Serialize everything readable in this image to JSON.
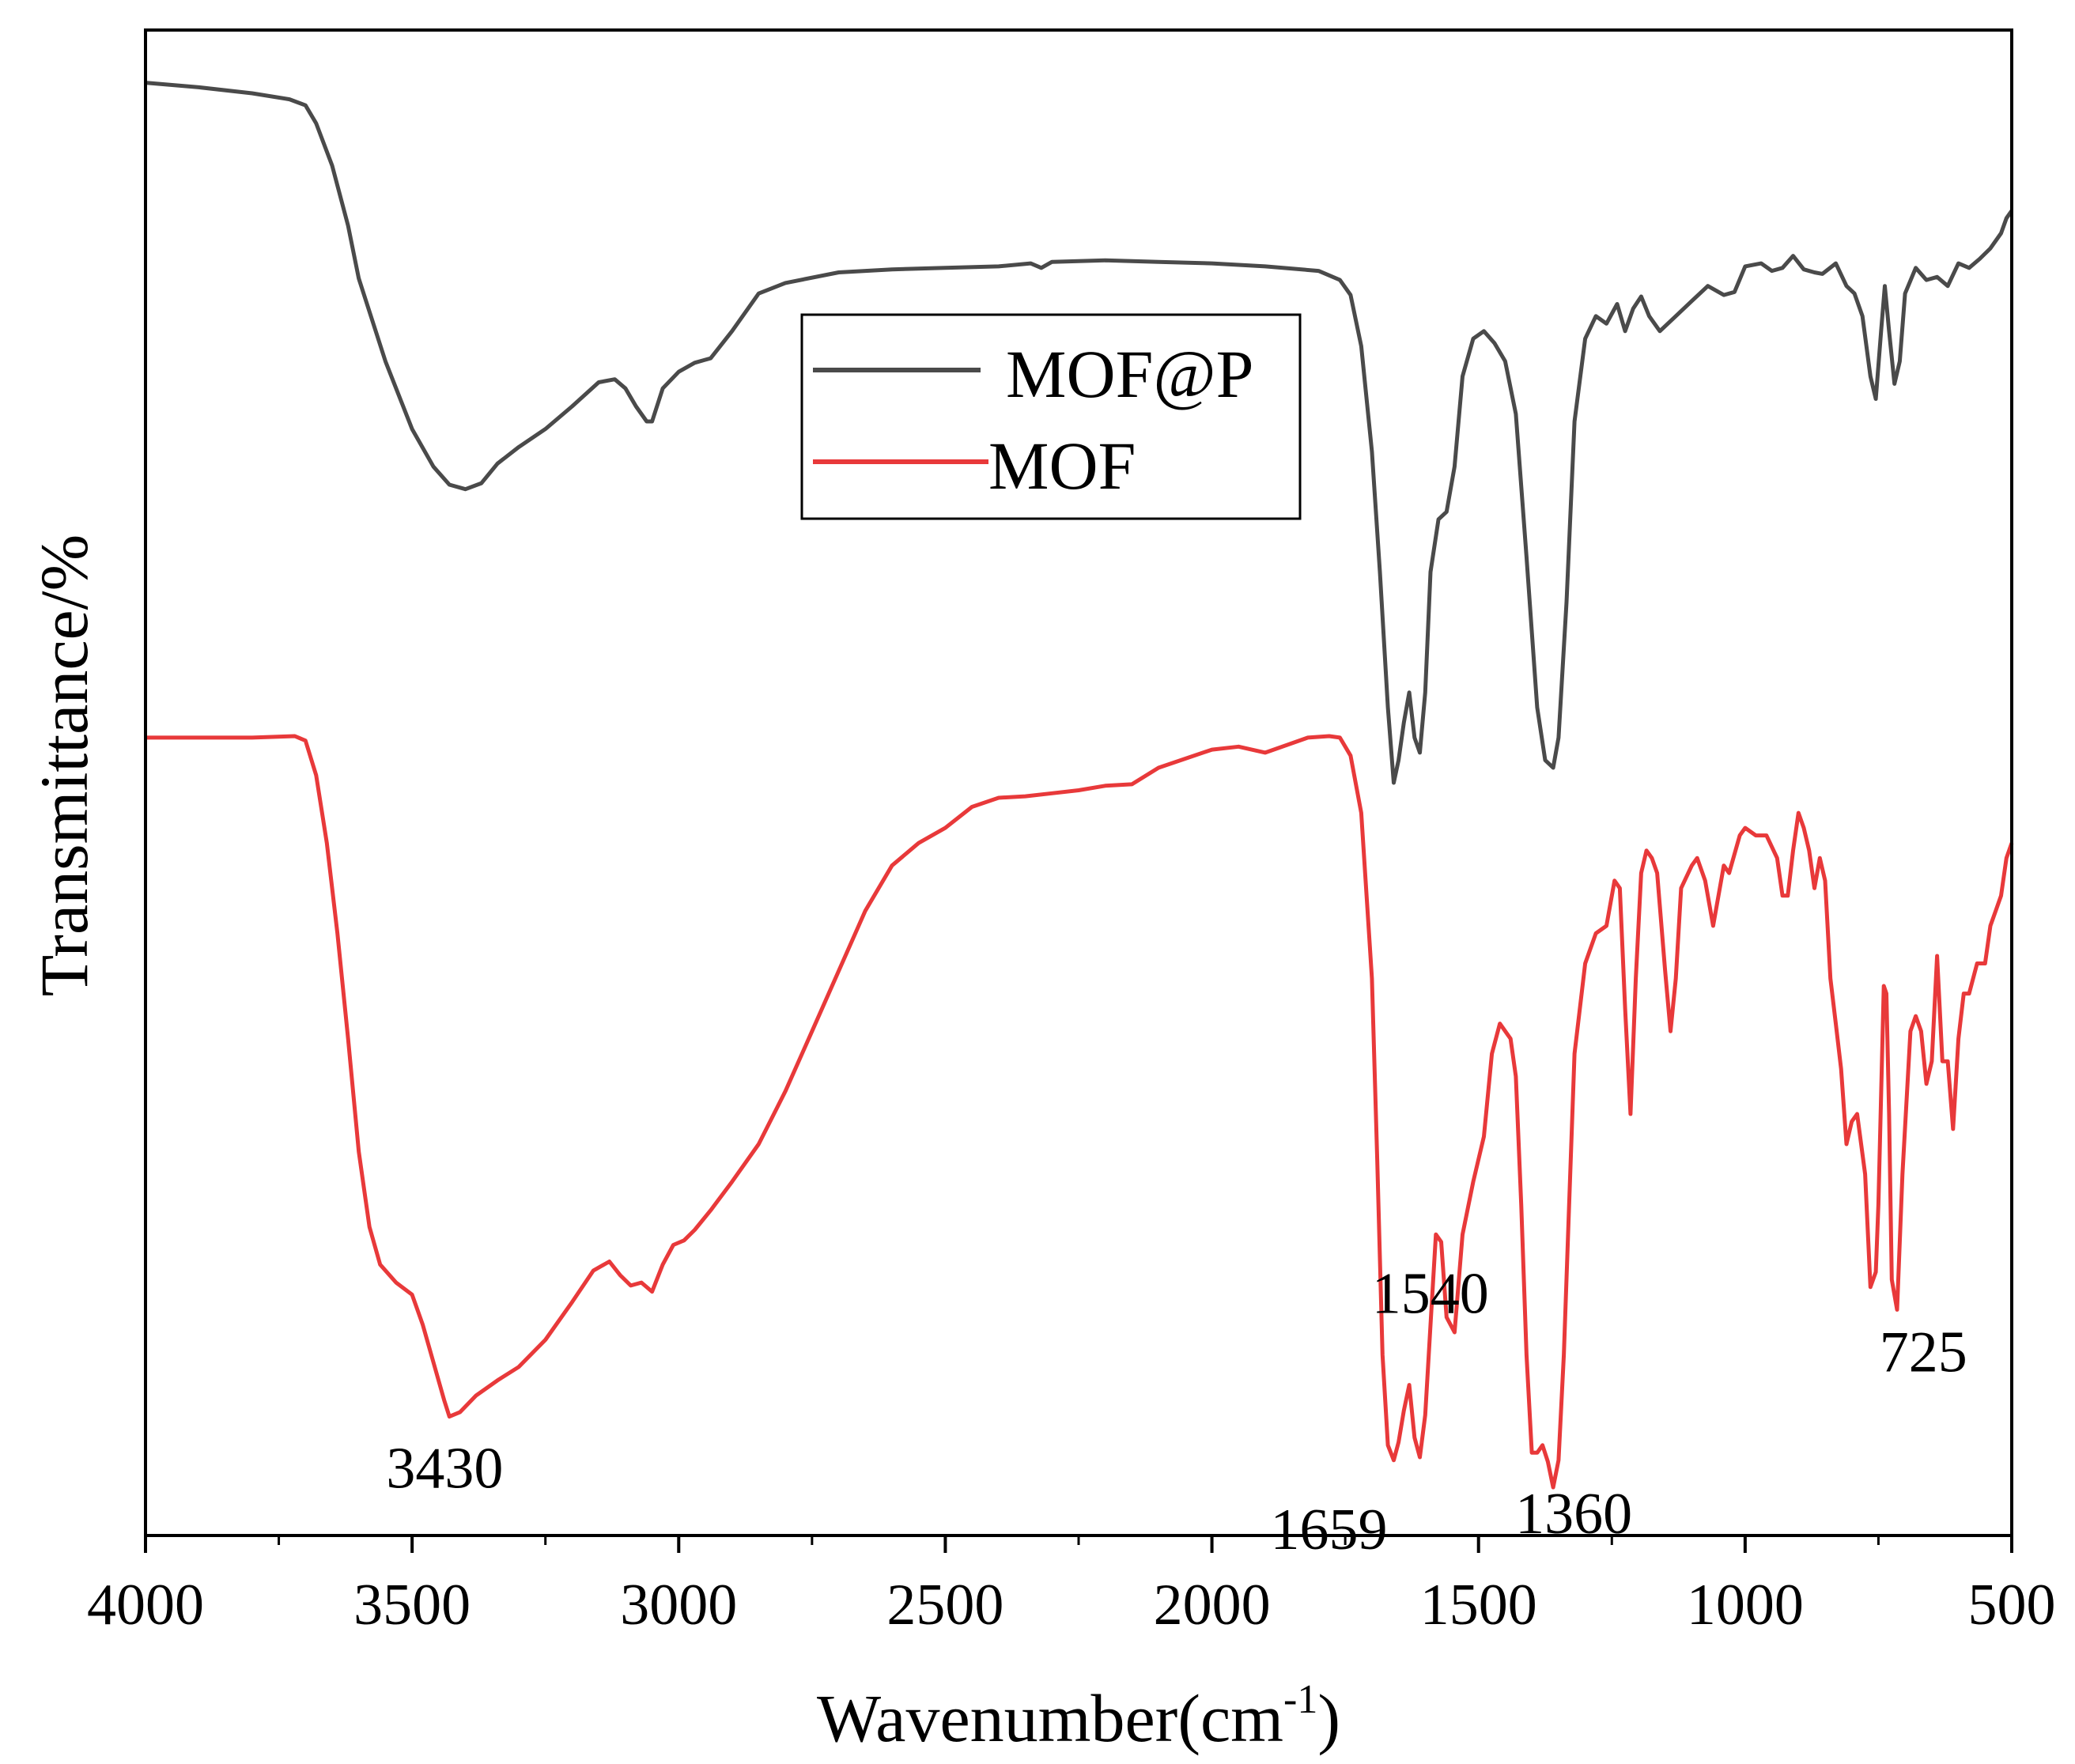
{
  "chart_data": {
    "type": "line",
    "title": "",
    "xlabel": "Wavenumber(cm",
    "xlabel_sup": "-1",
    "xlabel_close": ")",
    "ylabel": "Transmittance/%",
    "xlim": [
      4000,
      500
    ],
    "ylim": [
      0,
      100
    ],
    "x_ticks": [
      4000,
      3500,
      3000,
      2500,
      2000,
      1500,
      1000,
      500
    ],
    "y_ticks_shown": false,
    "grid": false,
    "legend_position": "top-center",
    "series": [
      {
        "name": "MOF@P",
        "color": "#4a4a4a",
        "points": [
          [
            4000,
            96.5
          ],
          [
            3900,
            96.2
          ],
          [
            3800,
            95.8
          ],
          [
            3730,
            95.4
          ],
          [
            3700,
            95.0
          ],
          [
            3680,
            93.8
          ],
          [
            3650,
            91.0
          ],
          [
            3620,
            87.0
          ],
          [
            3600,
            83.5
          ],
          [
            3550,
            78.0
          ],
          [
            3500,
            73.5
          ],
          [
            3460,
            71.0
          ],
          [
            3430,
            69.8
          ],
          [
            3400,
            69.5
          ],
          [
            3370,
            69.9
          ],
          [
            3340,
            71.2
          ],
          [
            3300,
            72.3
          ],
          [
            3250,
            73.5
          ],
          [
            3200,
            75.0
          ],
          [
            3150,
            76.6
          ],
          [
            3120,
            76.8
          ],
          [
            3100,
            76.2
          ],
          [
            3080,
            75.0
          ],
          [
            3060,
            74.0
          ],
          [
            3050,
            74.0
          ],
          [
            3030,
            76.2
          ],
          [
            3000,
            77.3
          ],
          [
            2970,
            77.9
          ],
          [
            2940,
            78.2
          ],
          [
            2900,
            80.0
          ],
          [
            2850,
            82.5
          ],
          [
            2800,
            83.2
          ],
          [
            2700,
            83.9
          ],
          [
            2600,
            84.1
          ],
          [
            2500,
            84.2
          ],
          [
            2400,
            84.3
          ],
          [
            2340,
            84.5
          ],
          [
            2320,
            84.2
          ],
          [
            2300,
            84.6
          ],
          [
            2200,
            84.7
          ],
          [
            2100,
            84.6
          ],
          [
            2000,
            84.5
          ],
          [
            1900,
            84.3
          ],
          [
            1800,
            84.0
          ],
          [
            1760,
            83.4
          ],
          [
            1740,
            82.4
          ],
          [
            1720,
            79.0
          ],
          [
            1700,
            72.0
          ],
          [
            1685,
            64.0
          ],
          [
            1670,
            55.0
          ],
          [
            1659,
            50.0
          ],
          [
            1650,
            51.5
          ],
          [
            1640,
            54.0
          ],
          [
            1630,
            56.0
          ],
          [
            1620,
            53.0
          ],
          [
            1610,
            52.0
          ],
          [
            1600,
            56.0
          ],
          [
            1590,
            64.0
          ],
          [
            1575,
            67.5
          ],
          [
            1560,
            68.0
          ],
          [
            1545,
            71.0
          ],
          [
            1530,
            77.0
          ],
          [
            1510,
            79.5
          ],
          [
            1490,
            80.0
          ],
          [
            1470,
            79.2
          ],
          [
            1450,
            78.0
          ],
          [
            1430,
            74.5
          ],
          [
            1410,
            65.0
          ],
          [
            1390,
            55.0
          ],
          [
            1375,
            51.5
          ],
          [
            1360,
            51.0
          ],
          [
            1350,
            53.0
          ],
          [
            1335,
            62.0
          ],
          [
            1320,
            74.0
          ],
          [
            1300,
            79.5
          ],
          [
            1280,
            81.0
          ],
          [
            1260,
            80.5
          ],
          [
            1240,
            81.8
          ],
          [
            1225,
            80.0
          ],
          [
            1210,
            81.5
          ],
          [
            1195,
            82.3
          ],
          [
            1180,
            81.0
          ],
          [
            1160,
            80.0
          ],
          [
            1130,
            81.0
          ],
          [
            1100,
            82.0
          ],
          [
            1070,
            83.0
          ],
          [
            1040,
            82.4
          ],
          [
            1020,
            82.6
          ],
          [
            1000,
            84.3
          ],
          [
            970,
            84.5
          ],
          [
            950,
            84.0
          ],
          [
            930,
            84.2
          ],
          [
            910,
            85.0
          ],
          [
            890,
            84.1
          ],
          [
            870,
            83.9
          ],
          [
            855,
            83.8
          ],
          [
            830,
            84.5
          ],
          [
            810,
            83.0
          ],
          [
            795,
            82.5
          ],
          [
            780,
            81.0
          ],
          [
            765,
            77.0
          ],
          [
            755,
            75.5
          ],
          [
            745,
            80.0
          ],
          [
            738,
            83.0
          ],
          [
            730,
            80.0
          ],
          [
            720,
            76.5
          ],
          [
            710,
            78.0
          ],
          [
            700,
            82.5
          ],
          [
            680,
            84.2
          ],
          [
            660,
            83.4
          ],
          [
            640,
            83.6
          ],
          [
            620,
            83.0
          ],
          [
            600,
            84.5
          ],
          [
            580,
            84.2
          ],
          [
            560,
            84.8
          ],
          [
            540,
            85.5
          ],
          [
            520,
            86.5
          ],
          [
            510,
            87.5
          ],
          [
            500,
            88.0
          ]
        ]
      },
      {
        "name": "MOF",
        "color": "#e8393a",
        "points": [
          [
            4000,
            53.0
          ],
          [
            3900,
            53.0
          ],
          [
            3800,
            53.0
          ],
          [
            3720,
            53.1
          ],
          [
            3700,
            52.8
          ],
          [
            3680,
            50.5
          ],
          [
            3660,
            46.0
          ],
          [
            3640,
            40.0
          ],
          [
            3620,
            33.0
          ],
          [
            3600,
            25.5
          ],
          [
            3580,
            20.5
          ],
          [
            3560,
            18.0
          ],
          [
            3530,
            16.8
          ],
          [
            3500,
            16.0
          ],
          [
            3480,
            14.0
          ],
          [
            3460,
            11.5
          ],
          [
            3440,
            9.0
          ],
          [
            3430,
            7.9
          ],
          [
            3410,
            8.2
          ],
          [
            3380,
            9.3
          ],
          [
            3340,
            10.3
          ],
          [
            3300,
            11.2
          ],
          [
            3250,
            13.0
          ],
          [
            3200,
            15.5
          ],
          [
            3160,
            17.6
          ],
          [
            3130,
            18.2
          ],
          [
            3110,
            17.3
          ],
          [
            3090,
            16.6
          ],
          [
            3070,
            16.8
          ],
          [
            3050,
            16.2
          ],
          [
            3030,
            18.0
          ],
          [
            3010,
            19.3
          ],
          [
            2990,
            19.6
          ],
          [
            2970,
            20.3
          ],
          [
            2940,
            21.6
          ],
          [
            2900,
            23.5
          ],
          [
            2850,
            26.0
          ],
          [
            2800,
            29.5
          ],
          [
            2750,
            33.5
          ],
          [
            2700,
            37.5
          ],
          [
            2650,
            41.5
          ],
          [
            2600,
            44.5
          ],
          [
            2550,
            46.0
          ],
          [
            2500,
            47.0
          ],
          [
            2450,
            48.4
          ],
          [
            2400,
            49.0
          ],
          [
            2350,
            49.1
          ],
          [
            2300,
            49.3
          ],
          [
            2250,
            49.5
          ],
          [
            2200,
            49.8
          ],
          [
            2150,
            49.9
          ],
          [
            2100,
            51.0
          ],
          [
            2050,
            51.6
          ],
          [
            2000,
            52.2
          ],
          [
            1950,
            52.4
          ],
          [
            1900,
            52.0
          ],
          [
            1860,
            52.5
          ],
          [
            1820,
            53.0
          ],
          [
            1780,
            53.1
          ],
          [
            1760,
            53.0
          ],
          [
            1740,
            51.8
          ],
          [
            1720,
            48.0
          ],
          [
            1700,
            37.0
          ],
          [
            1690,
            25.0
          ],
          [
            1680,
            12.0
          ],
          [
            1670,
            6.0
          ],
          [
            1659,
            5.0
          ],
          [
            1650,
            6.2
          ],
          [
            1640,
            8.3
          ],
          [
            1630,
            10.0
          ],
          [
            1620,
            6.5
          ],
          [
            1610,
            5.2
          ],
          [
            1600,
            8.0
          ],
          [
            1590,
            14.0
          ],
          [
            1580,
            20.0
          ],
          [
            1570,
            19.5
          ],
          [
            1560,
            14.5
          ],
          [
            1545,
            13.5
          ],
          [
            1530,
            20.0
          ],
          [
            1510,
            23.5
          ],
          [
            1490,
            26.5
          ],
          [
            1475,
            32.0
          ],
          [
            1460,
            34.0
          ],
          [
            1440,
            33.0
          ],
          [
            1430,
            30.5
          ],
          [
            1420,
            22.0
          ],
          [
            1410,
            12.0
          ],
          [
            1400,
            5.5
          ],
          [
            1390,
            5.5
          ],
          [
            1380,
            6.0
          ],
          [
            1370,
            4.9
          ],
          [
            1360,
            3.2
          ],
          [
            1350,
            5.0
          ],
          [
            1340,
            12.0
          ],
          [
            1330,
            22.0
          ],
          [
            1320,
            32.0
          ],
          [
            1300,
            38.0
          ],
          [
            1280,
            40.0
          ],
          [
            1260,
            40.5
          ],
          [
            1245,
            43.5
          ],
          [
            1235,
            43.0
          ],
          [
            1225,
            35.0
          ],
          [
            1215,
            28.0
          ],
          [
            1205,
            37.0
          ],
          [
            1195,
            44.0
          ],
          [
            1185,
            45.5
          ],
          [
            1175,
            45.0
          ],
          [
            1165,
            44.0
          ],
          [
            1150,
            37.5
          ],
          [
            1140,
            33.5
          ],
          [
            1130,
            37.0
          ],
          [
            1120,
            43.0
          ],
          [
            1100,
            44.5
          ],
          [
            1090,
            45.0
          ],
          [
            1075,
            43.5
          ],
          [
            1060,
            40.5
          ],
          [
            1040,
            44.5
          ],
          [
            1030,
            44.0
          ],
          [
            1010,
            46.5
          ],
          [
            1000,
            47.0
          ],
          [
            980,
            46.5
          ],
          [
            960,
            46.5
          ],
          [
            940,
            45.0
          ],
          [
            930,
            42.5
          ],
          [
            920,
            42.5
          ],
          [
            910,
            45.5
          ],
          [
            900,
            48.0
          ],
          [
            890,
            47.0
          ],
          [
            880,
            45.5
          ],
          [
            870,
            43.0
          ],
          [
            860,
            45.0
          ],
          [
            850,
            43.5
          ],
          [
            840,
            37.0
          ],
          [
            830,
            34.0
          ],
          [
            820,
            31.0
          ],
          [
            810,
            26.0
          ],
          [
            800,
            27.5
          ],
          [
            790,
            28.0
          ],
          [
            775,
            24.0
          ],
          [
            765,
            16.5
          ],
          [
            755,
            17.5
          ],
          [
            750,
            22.0
          ],
          [
            740,
            36.5
          ],
          [
            735,
            36.0
          ],
          [
            730,
            28.0
          ],
          [
            725,
            17.0
          ],
          [
            715,
            15.0
          ],
          [
            705,
            24.0
          ],
          [
            690,
            33.5
          ],
          [
            680,
            34.5
          ],
          [
            670,
            33.5
          ],
          [
            660,
            30.0
          ],
          [
            650,
            31.5
          ],
          [
            640,
            38.5
          ],
          [
            630,
            31.5
          ],
          [
            620,
            31.5
          ],
          [
            610,
            27.0
          ],
          [
            600,
            33.0
          ],
          [
            590,
            36.0
          ],
          [
            580,
            36.0
          ],
          [
            565,
            38.0
          ],
          [
            550,
            38.0
          ],
          [
            540,
            40.5
          ],
          [
            530,
            41.5
          ],
          [
            520,
            42.5
          ],
          [
            510,
            45.0
          ],
          [
            500,
            46.0
          ]
        ]
      }
    ],
    "annotations": [
      {
        "text": "3430",
        "x": 3430,
        "y": 8
      },
      {
        "text": "1659",
        "x": 1659,
        "y": 5
      },
      {
        "text": "1540",
        "x": 1540,
        "y": 13
      },
      {
        "text": "1360",
        "x": 1360,
        "y": 3
      },
      {
        "text": "725",
        "x": 725,
        "y": 15
      }
    ]
  }
}
